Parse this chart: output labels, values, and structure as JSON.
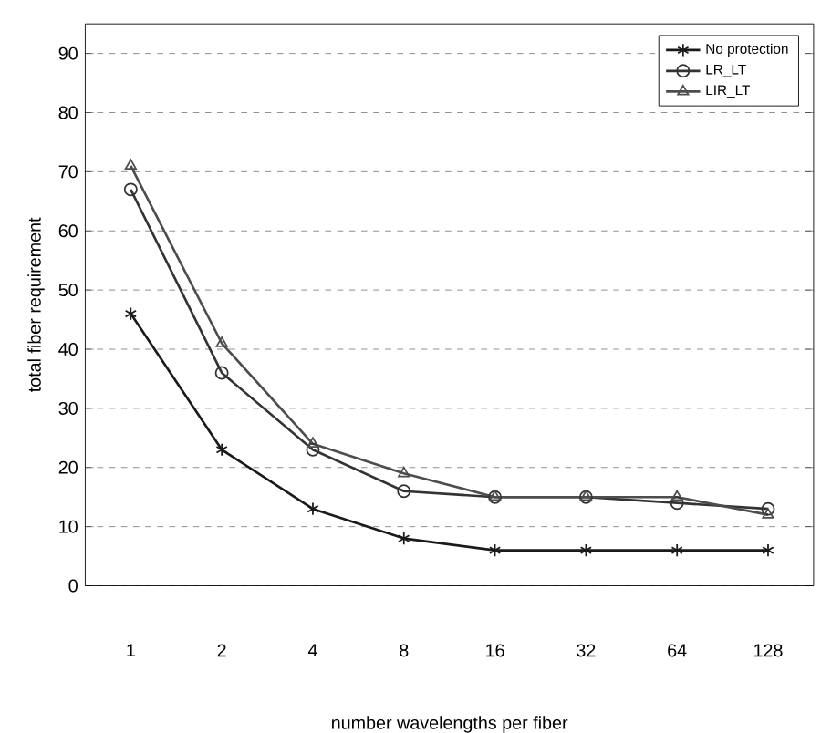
{
  "chart_data": {
    "type": "line",
    "xlabel": "number wavelengths per fiber",
    "ylabel": "total fiber requirement",
    "categories": [
      "1",
      "2",
      "4",
      "8",
      "16",
      "32",
      "64",
      "128"
    ],
    "series": [
      {
        "name": "No protection",
        "color": "#1a1a1a",
        "marker": "cross",
        "values": [
          46,
          23,
          13,
          8,
          6,
          6,
          6,
          6
        ]
      },
      {
        "name": "LR_LT",
        "color": "#333333",
        "marker": "circle",
        "values": [
          67,
          36,
          23,
          16,
          15,
          15,
          14,
          13
        ]
      },
      {
        "name": "LIR_LT",
        "color": "#4d4d4d",
        "marker": "triangle",
        "values": [
          71,
          41,
          24,
          19,
          15,
          15,
          15,
          12
        ]
      }
    ],
    "ylim": [
      0,
      95
    ],
    "yticks": [
      0,
      10,
      20,
      30,
      40,
      50,
      60,
      70,
      80,
      90
    ],
    "grid": "y",
    "legend": "top right"
  }
}
